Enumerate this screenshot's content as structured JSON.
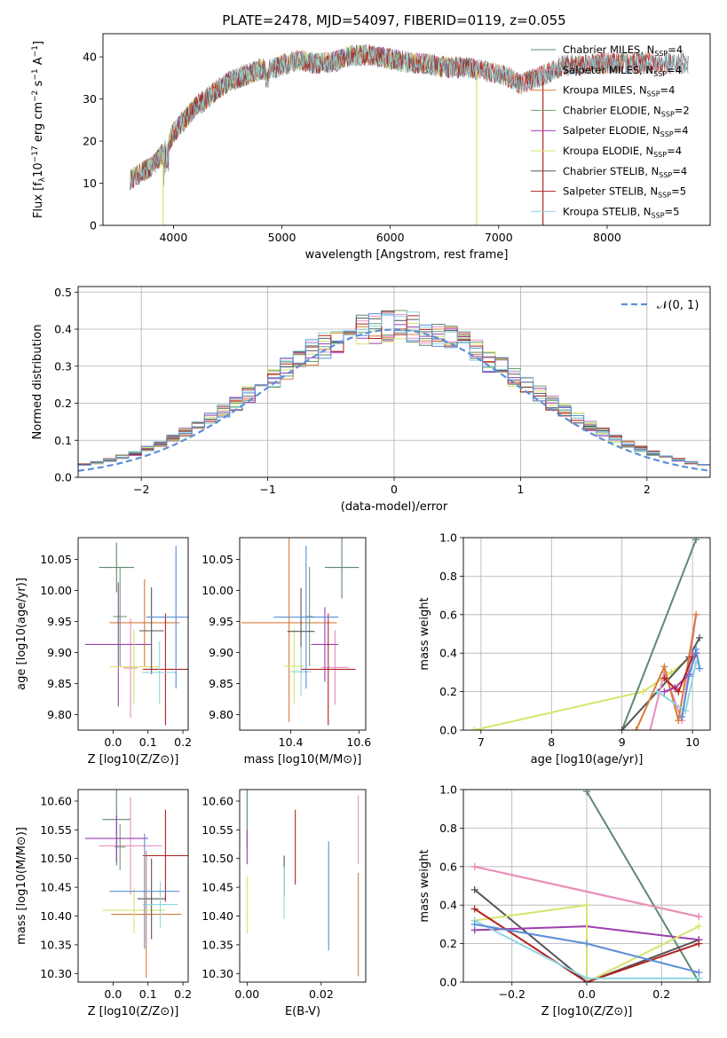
{
  "figure": {
    "title": "PLATE=2478, MJD=54097, FIBERID=0119, z=0.055"
  },
  "chart_data": [
    {
      "id": "spectrum",
      "type": "line",
      "title": "PLATE=2478, MJD=54097, FIBERID=0119, z=0.055",
      "xlabel": "wavelength [Angstrom, rest frame]",
      "ylabel": "Flux [f_λ 10^-17 erg cm^-2 s^-1 A^-1]",
      "xlim": [
        3350,
        8950
      ],
      "ylim": [
        0,
        45.5
      ],
      "xticks": [
        4000,
        5000,
        6000,
        7000,
        8000
      ],
      "yticks": [
        0,
        10,
        20,
        30,
        40
      ],
      "grid": false,
      "legend_placement": "right",
      "continuum": {
        "x": [
          3600,
          3700,
          3800,
          3900,
          4000,
          4100,
          4200,
          4300,
          4400,
          4500,
          4600,
          4700,
          4800,
          4900,
          5000,
          5100,
          5200,
          5300,
          5400,
          5500,
          5600,
          5700,
          5800,
          5900,
          6000,
          6100,
          6200,
          6300,
          6400,
          6500,
          6600,
          6700,
          6800,
          6900,
          7000,
          7100,
          7200,
          7300,
          7400,
          7500,
          7600,
          7700,
          7800
        ],
        "y": [
          11,
          12.5,
          14,
          17,
          22,
          25,
          28,
          30,
          32,
          34,
          35,
          36,
          37,
          37,
          38,
          39,
          39,
          38.5,
          38.5,
          39,
          40,
          40.5,
          40.5,
          40,
          39.5,
          39,
          38.5,
          38.5,
          38,
          37.5,
          37.5,
          37.5,
          37,
          36.5,
          36,
          35,
          33.5,
          34.5,
          35.5,
          36.5,
          38,
          38,
          38.5
        ]
      },
      "dips": [
        {
          "series": "Kroupa ELODIE",
          "x": 3905
        },
        {
          "series": "Kroupa ELODIE",
          "x": 6795
        },
        {
          "series": "Salpeter STELIB",
          "x": 7408
        }
      ],
      "series": [
        {
          "name": "Chabrier MILES, N_SSP=4",
          "label": "Chabrier MILES, N",
          "sub": "SSP",
          "suffix": "=4",
          "color": "#5c8a6d",
          "x_end": 8400
        },
        {
          "name": "Salpeter MILES, N_SSP=4",
          "label": "Salpeter MILES, N",
          "sub": "SSP",
          "suffix": "=4",
          "color": "#e88ec0",
          "x_end": 8400
        },
        {
          "name": "Kroupa MILES, N_SSP=4",
          "label": "Kroupa MILES, N",
          "sub": "SSP",
          "suffix": "=4",
          "color": "#d97b3a",
          "x_end": 8400
        },
        {
          "name": "Chabrier ELODIE, N_SSP=2",
          "label": "Chabrier ELODIE, N",
          "sub": "SSP",
          "suffix": "=2",
          "color": "#6e9e6e",
          "x_end": 6800
        },
        {
          "name": "Salpeter ELODIE, N_SSP=4",
          "label": "Salpeter ELODIE, N",
          "sub": "SSP",
          "suffix": "=4",
          "color": "#9b3fb0",
          "x_end": 6800
        },
        {
          "name": "Kroupa ELODIE, N_SSP=4",
          "label": "Kroupa ELODIE, N",
          "sub": "SSP",
          "suffix": "=4",
          "color": "#d7e36b",
          "x_end": 6800
        },
        {
          "name": "Chabrier STELIB, N_SSP=4",
          "label": "Chabrier STELIB, N",
          "sub": "SSP",
          "suffix": "=4",
          "color": "#555555",
          "x_end": 8750
        },
        {
          "name": "Salpeter STELIB, N_SSP=5",
          "label": "Salpeter STELIB, N",
          "sub": "SSP",
          "suffix": "=5",
          "color": "#b22222",
          "x_end": 8750
        },
        {
          "name": "Kroupa STELIB, N_SSP=5",
          "label": "Kroupa STELIB, N",
          "sub": "SSP",
          "suffix": "=5",
          "color": "#8fd6de",
          "x_end": 8750
        }
      ]
    },
    {
      "id": "residuals",
      "type": "histogram",
      "xlabel": "(data-model)/error",
      "ylabel": "Normed distribution",
      "xlim": [
        -2.5,
        2.5
      ],
      "ylim": [
        0,
        0.515
      ],
      "xticks": [
        -2,
        -1,
        0,
        1,
        2
      ],
      "yticks": [
        0.0,
        0.1,
        0.2,
        0.3,
        0.4,
        0.5
      ],
      "grid": true,
      "bin_width": 0.1,
      "reference_curve": {
        "name": "N(0,1)",
        "label": "𝒩(0, 1)",
        "color": "#5b8fd6",
        "style": "dashed"
      },
      "legend_placement": "top-right",
      "series_colors": [
        "#5c8a6d",
        "#e88ec0",
        "#d97b3a",
        "#6e9e6e",
        "#9b3fb0",
        "#d7e36b",
        "#555555",
        "#b22222",
        "#8fd6de",
        "#5b8fd6"
      ]
    },
    {
      "id": "age-vs-Z",
      "type": "errorbar",
      "xlabel": "Z [log10(Z/Z⊙)]",
      "ylabel": "age  [log10(age/yr)]",
      "xlim": [
        -0.1,
        0.215
      ],
      "ylim": [
        9.775,
        10.085
      ],
      "xticks": [
        0.0,
        0.1,
        0.2
      ],
      "yticks": [
        9.8,
        9.85,
        9.9,
        9.95,
        10.0,
        10.05
      ],
      "points": [
        {
          "color": "#5c8a6d",
          "x": 0.01,
          "y": 10.037,
          "xerr": 0.05,
          "yerr": 0.04
        },
        {
          "color": "#e88ec0",
          "x": 0.05,
          "y": 9.875,
          "xerr": 0.02,
          "yerr": 0.08
        },
        {
          "color": "#d97b3a",
          "x": 0.09,
          "y": 9.948,
          "xerr": 0.1,
          "yerr": 0.07
        },
        {
          "color": "#6e9e6e",
          "x": 0.02,
          "y": 9.958,
          "xerr": 0.02,
          "yerr": 0.08
        },
        {
          "color": "#9b3fb0",
          "x": 0.015,
          "y": 9.913,
          "xerr": 0.095,
          "yerr": 0.1
        },
        {
          "color": "#d7e36b",
          "x": 0.06,
          "y": 9.877,
          "xerr": 0.07,
          "yerr": 0.06
        },
        {
          "color": "#555555",
          "x": 0.11,
          "y": 9.935,
          "xerr": 0.035,
          "yerr": 0.07
        },
        {
          "color": "#b22222",
          "x": 0.15,
          "y": 9.873,
          "xerr": 0.065,
          "yerr": 0.09
        },
        {
          "color": "#8fd6de",
          "x": 0.133,
          "y": 9.868,
          "xerr": 0.05,
          "yerr": 0.05
        },
        {
          "color": "#5b8fd6",
          "x": 0.18,
          "y": 9.957,
          "xerr": 0.085,
          "yerr": 0.115
        }
      ]
    },
    {
      "id": "age-vs-mass",
      "type": "errorbar",
      "xlabel": "mass [log10(M/M⊙)]",
      "ylabel": "",
      "xlim": [
        10.25,
        10.62
      ],
      "ylim": [
        9.775,
        10.085
      ],
      "xticks": [
        10.4,
        10.6
      ],
      "yticks": [
        9.8,
        9.85,
        9.9,
        9.95,
        10.0,
        10.05
      ],
      "points": [
        {
          "color": "#5c8a6d",
          "x": 10.55,
          "y": 10.037,
          "xerr": 0.05,
          "yerr": 0.05
        },
        {
          "color": "#e88ec0",
          "x": 10.53,
          "y": 9.876,
          "xerr": 0.04,
          "yerr": 0.06
        },
        {
          "color": "#d97b3a",
          "x": 10.395,
          "y": 9.948,
          "xerr": 0.14,
          "yerr": 0.16
        },
        {
          "color": "#6e9e6e",
          "x": 10.455,
          "y": 9.958,
          "xerr": 0.01,
          "yerr": 0.08
        },
        {
          "color": "#9b3fb0",
          "x": 10.5,
          "y": 9.913,
          "xerr": 0.04,
          "yerr": 0.06
        },
        {
          "color": "#d7e36b",
          "x": 10.41,
          "y": 9.878,
          "xerr": 0.03,
          "yerr": 0.06
        },
        {
          "color": "#555555",
          "x": 10.43,
          "y": 9.934,
          "xerr": 0.04,
          "yerr": 0.07
        },
        {
          "color": "#b22222",
          "x": 10.51,
          "y": 9.873,
          "xerr": 0.08,
          "yerr": 0.09
        },
        {
          "color": "#8fd6de",
          "x": 10.43,
          "y": 9.869,
          "xerr": 0.03,
          "yerr": 0.04
        },
        {
          "color": "#5b8fd6",
          "x": 10.445,
          "y": 9.957,
          "xerr": 0.095,
          "yerr": 0.115
        }
      ]
    },
    {
      "id": "weight-vs-age",
      "type": "line",
      "xlabel": "age  [log10(age/yr)]",
      "ylabel": "mass weight",
      "xlim": [
        6.75,
        10.25
      ],
      "ylim": [
        0,
        1.0
      ],
      "xticks": [
        7,
        8,
        9,
        10
      ],
      "yticks": [
        0.0,
        0.2,
        0.4,
        0.6,
        0.8,
        1.0
      ],
      "grid": true,
      "series": [
        {
          "color": "#d7e36b",
          "x": [
            6.9,
            9.3,
            9.7,
            10.05
          ],
          "y": [
            0.0,
            0.2,
            0.3,
            0.4
          ]
        },
        {
          "color": "#5c8a6d",
          "x": [
            9.0,
            10.05
          ],
          "y": [
            0.0,
            0.99
          ]
        },
        {
          "color": "#555555",
          "x": [
            9.0,
            9.95,
            10.1
          ],
          "y": [
            0.0,
            0.38,
            0.48
          ]
        },
        {
          "color": "#e88ec0",
          "x": [
            9.4,
            9.6,
            9.85,
            10.05
          ],
          "y": [
            0.0,
            0.3,
            0.05,
            0.6
          ]
        },
        {
          "color": "#d97b3a",
          "x": [
            9.2,
            9.6,
            9.8,
            10.05
          ],
          "y": [
            0.0,
            0.33,
            0.05,
            0.6
          ]
        },
        {
          "color": "#9b3fb0",
          "x": [
            9.6,
            9.75,
            9.95,
            10.05
          ],
          "y": [
            0.2,
            0.22,
            0.29,
            0.4
          ]
        },
        {
          "color": "#b22222",
          "x": [
            9.6,
            9.8,
            10.0
          ],
          "y": [
            0.27,
            0.2,
            0.38
          ]
        },
        {
          "color": "#8fd6de",
          "x": [
            9.5,
            9.9,
            10.05
          ],
          "y": [
            0.2,
            0.1,
            0.35
          ]
        },
        {
          "color": "#5b8fd6",
          "x": [
            9.85,
            9.95,
            10.05,
            10.1
          ],
          "y": [
            0.07,
            0.28,
            0.42,
            0.32
          ]
        }
      ]
    },
    {
      "id": "mass-vs-Z",
      "type": "errorbar",
      "xlabel": "Z [log10(Z/Z⊙)]",
      "ylabel": "mass [log10(M/M⊙)]",
      "xlim": [
        -0.1,
        0.215
      ],
      "ylim": [
        10.285,
        10.62
      ],
      "xticks": [
        0.0,
        0.1,
        0.2
      ],
      "yticks": [
        10.3,
        10.35,
        10.4,
        10.45,
        10.5,
        10.55,
        10.6
      ],
      "points": [
        {
          "color": "#5c8a6d",
          "x": 0.01,
          "y": 10.568,
          "xerr": 0.04,
          "yerr": 0.08
        },
        {
          "color": "#e88ec0",
          "x": 0.05,
          "y": 10.522,
          "xerr": 0.09,
          "yerr": 0.085
        },
        {
          "color": "#d97b3a",
          "x": 0.095,
          "y": 10.403,
          "xerr": 0.1,
          "yerr": 0.11
        },
        {
          "color": "#6e9e6e",
          "x": 0.02,
          "y": 10.52,
          "xerr": 0.015,
          "yerr": 0.04
        },
        {
          "color": "#9b3fb0",
          "x": 0.01,
          "y": 10.535,
          "xerr": 0.09,
          "yerr": 0.04
        },
        {
          "color": "#d7e36b",
          "x": 0.06,
          "y": 10.41,
          "xerr": 0.09,
          "yerr": 0.04
        },
        {
          "color": "#555555",
          "x": 0.11,
          "y": 10.43,
          "xerr": 0.04,
          "yerr": 0.07
        },
        {
          "color": "#b22222",
          "x": 0.15,
          "y": 10.505,
          "xerr": 0.065,
          "yerr": 0.08
        },
        {
          "color": "#8fd6de",
          "x": 0.135,
          "y": 10.42,
          "xerr": 0.05,
          "yerr": 0.04
        },
        {
          "color": "#5b8fd6",
          "x": 0.09,
          "y": 10.443,
          "xerr": 0.1,
          "yerr": 0.1
        }
      ]
    },
    {
      "id": "mass-vs-EBV",
      "type": "errorbar",
      "xlabel": "E(B-V)",
      "ylabel": "",
      "xlim": [
        -0.002,
        0.032
      ],
      "ylim": [
        10.285,
        10.62
      ],
      "xticks": [
        0.0,
        0.02
      ],
      "yticks": [
        10.3,
        10.35,
        10.4,
        10.45,
        10.5,
        10.55,
        10.6
      ],
      "points": [
        {
          "color": "#5c8a6d",
          "x": 0.0,
          "y": 10.57,
          "xerr": 0,
          "yerr": 0.05
        },
        {
          "color": "#e88ec0",
          "x": 0.03,
          "y": 10.55,
          "xerr": 0,
          "yerr": 0.06
        },
        {
          "color": "#d97b3a",
          "x": 0.03,
          "y": 10.385,
          "xerr": 0,
          "yerr": 0.09
        },
        {
          "color": "#9b3fb0",
          "x": 0.0,
          "y": 10.52,
          "xerr": 0,
          "yerr": 0.03
        },
        {
          "color": "#d7e36b",
          "x": 0.0,
          "y": 10.42,
          "xerr": 0,
          "yerr": 0.05
        },
        {
          "color": "#555555",
          "x": 0.01,
          "y": 10.47,
          "xerr": 0,
          "yerr": 0.035
        },
        {
          "color": "#b22222",
          "x": 0.013,
          "y": 10.52,
          "xerr": 0,
          "yerr": 0.065
        },
        {
          "color": "#8fd6de",
          "x": 0.01,
          "y": 10.44,
          "xerr": 0,
          "yerr": 0.045
        },
        {
          "color": "#5b8fd6",
          "x": 0.022,
          "y": 10.435,
          "xerr": 0,
          "yerr": 0.095
        }
      ]
    },
    {
      "id": "weight-vs-Z",
      "type": "line",
      "xlabel": "Z [log10(Z/Z⊙)]",
      "ylabel": "mass weight",
      "xlim": [
        -0.33,
        0.33
      ],
      "ylim": [
        0,
        1.0
      ],
      "xticks": [
        -0.2,
        0.0,
        0.2
      ],
      "yticks": [
        0.0,
        0.2,
        0.4,
        0.6,
        0.8,
        1.0
      ],
      "grid": true,
      "series": [
        {
          "color": "#5c8a6d",
          "x": [
            0.0,
            0.3
          ],
          "y": [
            0.99,
            0.0
          ]
        },
        {
          "color": "#d97b3a",
          "x": [
            -0.3,
            0.3
          ],
          "y": [
            0.6,
            0.34
          ]
        },
        {
          "color": "#e88ec0",
          "x": [
            -0.3,
            0.3
          ],
          "y": [
            0.6,
            0.34
          ]
        },
        {
          "color": "#555555",
          "x": [
            -0.3,
            0.0,
            0.3
          ],
          "y": [
            0.48,
            0.0,
            0.22
          ]
        },
        {
          "color": "#9b3fb0",
          "x": [
            -0.3,
            0.0,
            0.3
          ],
          "y": [
            0.27,
            0.29,
            0.22
          ]
        },
        {
          "color": "#d7e36b",
          "x": [
            -0.3,
            0.0,
            0.0,
            0.3
          ],
          "y": [
            0.32,
            0.4,
            0.0,
            0.29
          ]
        },
        {
          "color": "#b22222",
          "x": [
            -0.3,
            0.0,
            0.3
          ],
          "y": [
            0.38,
            0.0,
            0.2
          ]
        },
        {
          "color": "#8fd6de",
          "x": [
            -0.3,
            0.0,
            0.3
          ],
          "y": [
            0.32,
            0.02,
            0.02
          ]
        },
        {
          "color": "#5b8fd6",
          "x": [
            -0.3,
            0.0,
            0.3
          ],
          "y": [
            0.3,
            0.2,
            0.05
          ]
        }
      ]
    }
  ]
}
